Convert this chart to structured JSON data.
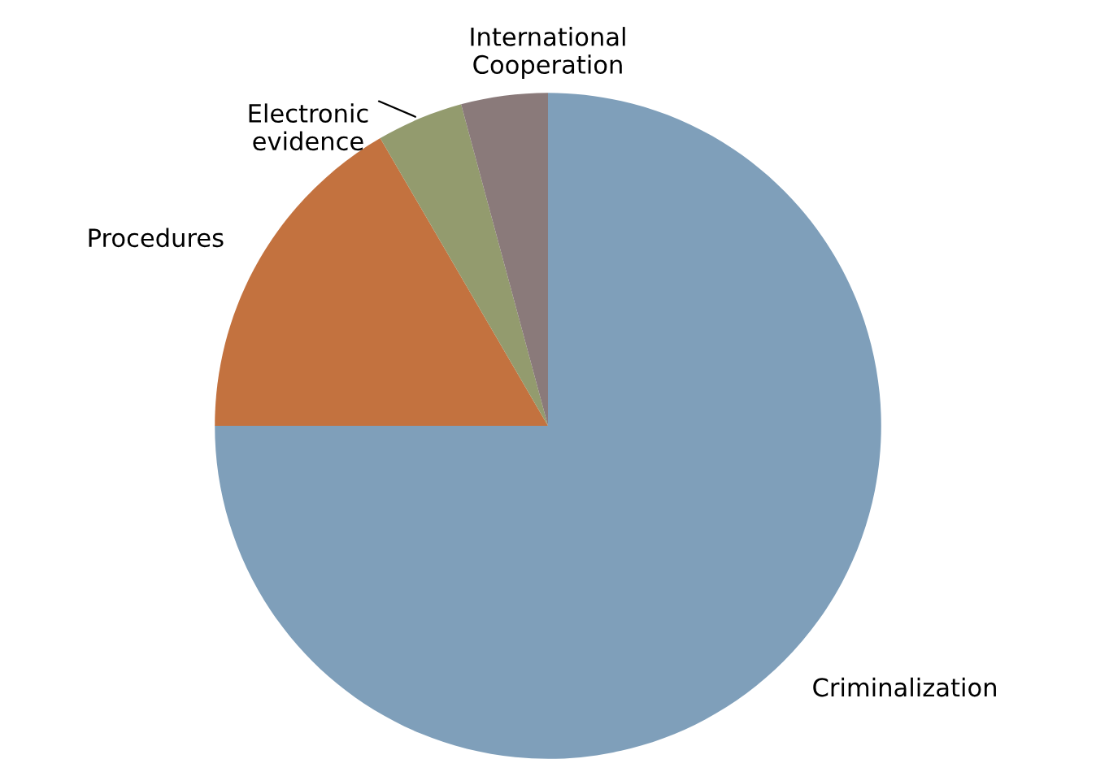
{
  "chart_data": {
    "type": "pie",
    "categories": [
      "Criminalization",
      "Procedures",
      "Electronic evidence",
      "International Cooperation"
    ],
    "values": [
      75,
      16.6,
      4.2,
      4.2
    ],
    "colors": [
      "#7f9fba",
      "#c3723f",
      "#939b6e",
      "#8a7a7a"
    ]
  }
}
